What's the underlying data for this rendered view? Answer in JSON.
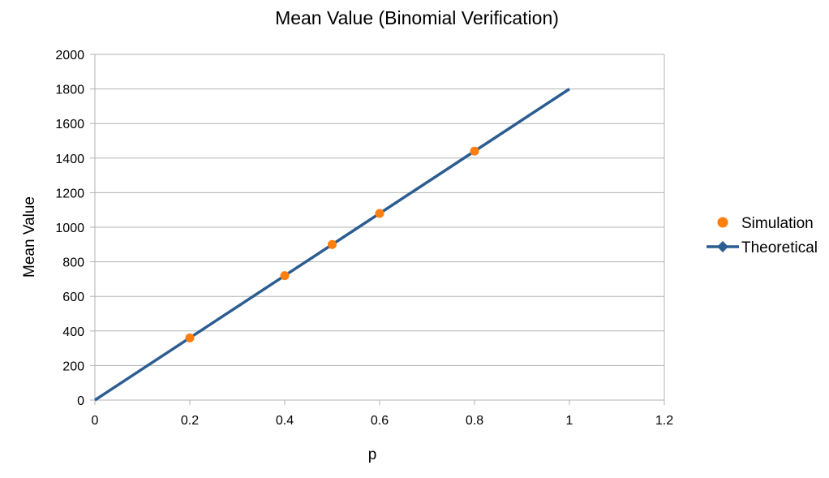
{
  "chart_data": {
    "type": "scatter",
    "title": "Mean Value (Binomial Verification)",
    "xlabel": "p",
    "ylabel": "Mean Value",
    "xlim": [
      0,
      1.2
    ],
    "ylim": [
      0,
      2000
    ],
    "x_ticks": [
      "0",
      "0.2",
      "0.4",
      "0.6",
      "0.8",
      "1",
      "1.2"
    ],
    "y_ticks": [
      "0",
      "200",
      "400",
      "600",
      "800",
      "1000",
      "1200",
      "1400",
      "1600",
      "1800",
      "2000"
    ],
    "grid": "horizontal",
    "legend_position": "right",
    "series": [
      {
        "name": "Simulation",
        "kind": "markers",
        "color": "#ff7f0e",
        "x": [
          0.2,
          0.4,
          0.5,
          0.6,
          0.8
        ],
        "y": [
          360,
          720,
          900,
          1080,
          1440
        ]
      },
      {
        "name": "Theoretical",
        "kind": "line",
        "color": "#2c5d91",
        "x": [
          0,
          1
        ],
        "y": [
          0,
          1800
        ]
      }
    ]
  }
}
